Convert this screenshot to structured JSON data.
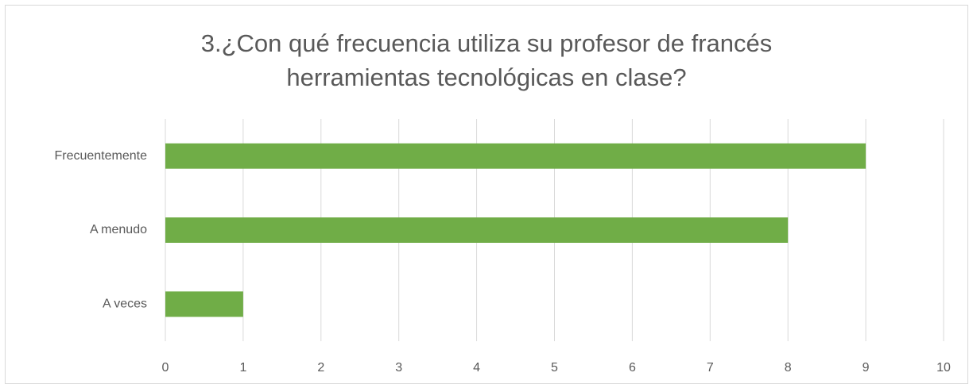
{
  "chart_data": {
    "type": "barh",
    "title": [
      "3.¿Con qué frecuencia utiliza su profesor de francés",
      "herramientas tecnológicas en clase?"
    ],
    "categories": [
      "Frecuentemente",
      "A menudo",
      "A veces"
    ],
    "values": [
      9,
      8,
      1
    ],
    "color": "#70ad47",
    "xlim": [
      0,
      10
    ],
    "xticks": [
      0,
      1,
      2,
      3,
      4,
      5,
      6,
      7,
      8,
      9,
      10
    ],
    "grid": true
  }
}
